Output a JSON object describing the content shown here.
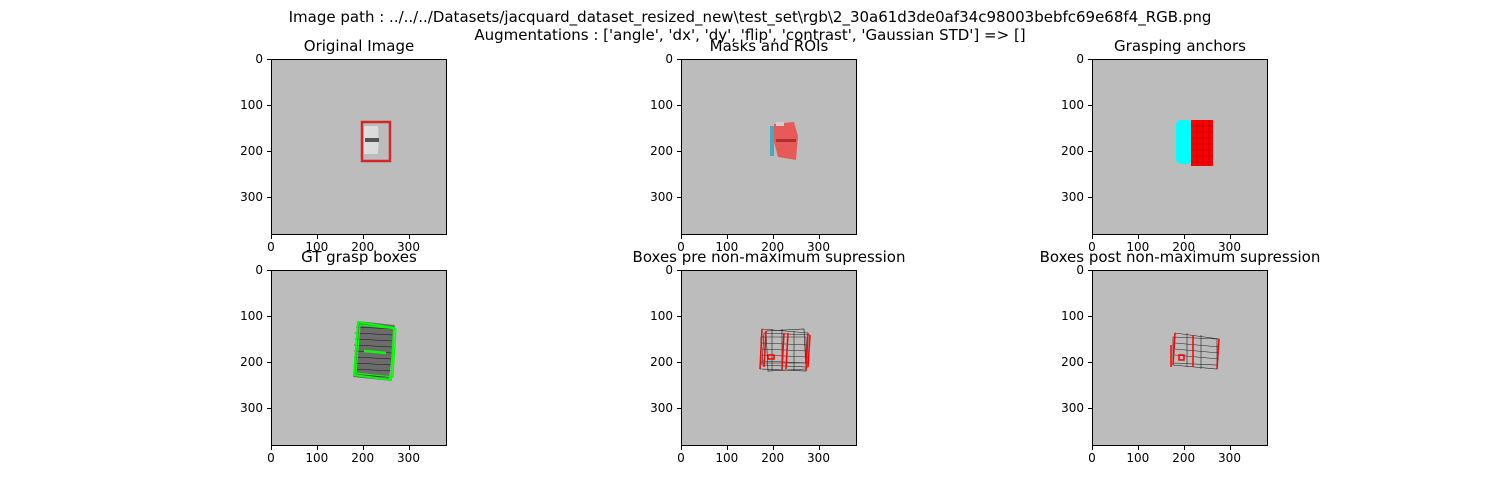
{
  "figure": {
    "suptitle_line1": "Image path : ../../../Datasets/jacquard_dataset_resized_new\\test_set\\rgb\\2_30a61d3de0af34c98003bebfc69e68f4_RGB.png",
    "suptitle_line2": "Augmentations : ['angle', 'dx', 'dy', 'flip', 'contrast', 'Gaussian STD'] => []"
  },
  "chart_data": [
    {
      "type": "image",
      "title": "Original Image",
      "xticks": [
        "0",
        "100",
        "200",
        "300"
      ],
      "yticks": [
        "0",
        "100",
        "200",
        "300"
      ],
      "xlim": [
        0,
        384
      ],
      "ylim": [
        384,
        0
      ],
      "overlay_color": "#d62728"
    },
    {
      "type": "image",
      "title": "Masks and ROIs",
      "xticks": [
        "0",
        "100",
        "200",
        "300"
      ],
      "yticks": [
        "0",
        "100",
        "200",
        "300"
      ],
      "xlim": [
        0,
        384
      ],
      "ylim": [
        384,
        0
      ],
      "overlay_color": "#e85a5a"
    },
    {
      "type": "image",
      "title": "Grasping anchors",
      "xticks": [
        "0",
        "100",
        "200",
        "300"
      ],
      "yticks": [
        "0",
        "100",
        "200",
        "300"
      ],
      "xlim": [
        0,
        384
      ],
      "ylim": [
        384,
        0
      ],
      "overlay_colors": [
        "#00ffff",
        "#ff0000"
      ]
    },
    {
      "type": "image",
      "title": "GT grasp boxes",
      "xticks": [
        "0",
        "100",
        "200",
        "300"
      ],
      "yticks": [
        "0",
        "100",
        "200",
        "300"
      ],
      "xlim": [
        0,
        384
      ],
      "ylim": [
        384,
        0
      ],
      "overlay_color": "#00ff00"
    },
    {
      "type": "image",
      "title": "Boxes pre non-maximum supression",
      "xticks": [
        "0",
        "100",
        "200",
        "300"
      ],
      "yticks": [
        "0",
        "100",
        "200",
        "300"
      ],
      "xlim": [
        0,
        384
      ],
      "ylim": [
        384,
        0
      ],
      "overlay_color": "#ff0000"
    },
    {
      "type": "image",
      "title": "Boxes post non-maximum supression",
      "xticks": [
        "0",
        "100",
        "200",
        "300"
      ],
      "yticks": [
        "0",
        "100",
        "200",
        "300"
      ],
      "xlim": [
        0,
        384
      ],
      "ylim": [
        384,
        0
      ],
      "overlay_color": "#ff0000"
    }
  ]
}
